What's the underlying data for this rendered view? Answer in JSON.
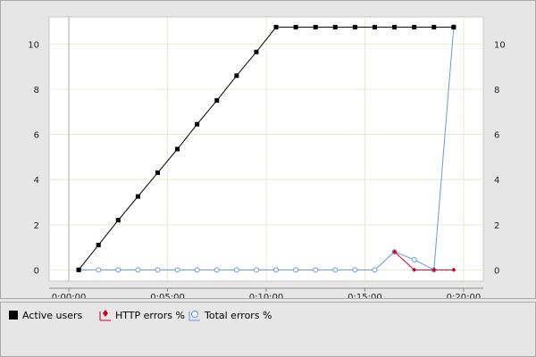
{
  "chart_data": {
    "type": "line",
    "x_ticks": [
      "0:00:00",
      "0:05:00",
      "0:10:00",
      "0:15:00",
      "0:20:00"
    ],
    "x_tick_seconds": [
      0,
      300,
      600,
      900,
      1200
    ],
    "x_range_seconds": [
      -60,
      1260
    ],
    "y_left_ticks": [
      0,
      2,
      4,
      6,
      8,
      10
    ],
    "y_left_range": [
      -0.5,
      11.2
    ],
    "y_right_ticks": [
      0,
      2,
      4,
      6,
      8,
      10
    ],
    "y_right_range": [
      -0.5,
      11.2
    ],
    "grid": true,
    "series": [
      {
        "name": "Active users",
        "color": "#000000",
        "marker": "square",
        "axis": "left",
        "x_seconds": [
          30,
          90,
          150,
          210,
          270,
          330,
          390,
          450,
          510,
          570,
          630,
          690,
          750,
          810,
          870,
          930,
          990,
          1050,
          1110,
          1170
        ],
        "values": [
          0,
          1.1,
          2.2,
          3.25,
          4.3,
          5.35,
          6.45,
          7.5,
          8.6,
          9.65,
          10.75,
          10.75,
          10.75,
          10.75,
          10.75,
          10.75,
          10.75,
          10.75,
          10.75,
          10.75
        ]
      },
      {
        "name": "HTTP errors %",
        "color": "#cc0022",
        "marker": "diamond",
        "axis": "right",
        "x_seconds": [
          990,
          1050,
          1110,
          1170
        ],
        "values": [
          0.8,
          0,
          0,
          0
        ]
      },
      {
        "name": "Total errors %",
        "color": "#6699dd",
        "marker": "circle",
        "axis": "right",
        "x_seconds": [
          30,
          90,
          150,
          210,
          270,
          330,
          390,
          450,
          510,
          570,
          630,
          690,
          750,
          810,
          870,
          930,
          990,
          1050,
          1110,
          1170
        ],
        "values": [
          0,
          0,
          0,
          0,
          0,
          0,
          0,
          0,
          0,
          0,
          0,
          0,
          0,
          0,
          0,
          0,
          0.8,
          0.45,
          0,
          10.75
        ]
      }
    ]
  },
  "legend": [
    {
      "label": "Active users",
      "icon": "black-square-icon"
    },
    {
      "label": "HTTP errors %",
      "icon": "red-diamond-icon"
    },
    {
      "label": "Total errors %",
      "icon": "blue-circle-icon"
    }
  ]
}
